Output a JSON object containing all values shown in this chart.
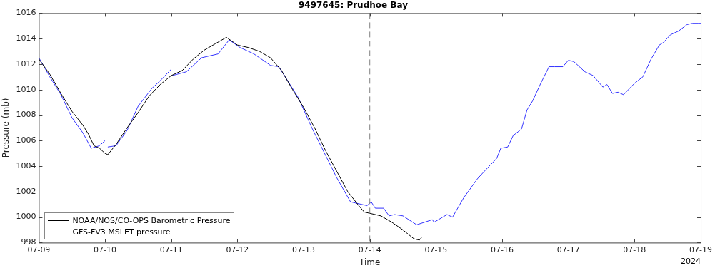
{
  "chart_data": {
    "type": "line",
    "title": "9497645: Prudhoe Bay",
    "xlabel": "Time",
    "ylabel": "Pressure (mb)",
    "annotations": [
      "2024"
    ],
    "xlim": [
      "2024-07-09",
      "2024-07-19"
    ],
    "xticks": [
      {
        "value": "2024-07-09",
        "label": "07-09"
      },
      {
        "value": "2024-07-10",
        "label": "07-10"
      },
      {
        "value": "2024-07-11",
        "label": "07-11"
      },
      {
        "value": "2024-07-12",
        "label": "07-12"
      },
      {
        "value": "2024-07-13",
        "label": "07-13"
      },
      {
        "value": "2024-07-14",
        "label": "07-14"
      },
      {
        "value": "2024-07-15",
        "label": "07-15"
      },
      {
        "value": "2024-07-16",
        "label": "07-16"
      },
      {
        "value": "2024-07-17",
        "label": "07-17"
      },
      {
        "value": "2024-07-18",
        "label": "07-18"
      },
      {
        "value": "2024-07-19",
        "label": "07-19"
      }
    ],
    "ylim": [
      998,
      1016
    ],
    "yticks": [
      998,
      1000,
      1002,
      1004,
      1006,
      1008,
      1010,
      1012,
      1014,
      1016
    ],
    "grid": false,
    "legend": "bottom left",
    "marker": "none",
    "line_style": "solid",
    "ref_lines": [
      {
        "axis": "x",
        "value": "2024-07-14",
        "color": "#808080",
        "line_style": "dashed"
      }
    ],
    "series": [
      {
        "name": "NOAA/NOS/CO-OPS Barometric Pressure",
        "color": "#000000",
        "x": [
          "2024-07-09T00:00",
          "2024-07-09T04:00",
          "2024-07-09T08:00",
          "2024-07-09T12:00",
          "2024-07-09T16:00",
          "2024-07-09T18:00",
          "2024-07-09T20:00",
          "2024-07-09T22:00",
          "2024-07-10T00:00",
          "2024-07-10T01:00",
          "2024-07-10T04:00",
          "2024-07-10T08:00",
          "2024-07-10T12:00",
          "2024-07-10T16:00",
          "2024-07-10T20:00",
          "2024-07-11T00:00",
          "2024-07-11T04:00",
          "2024-07-11T08:00",
          "2024-07-11T12:00",
          "2024-07-11T16:00",
          "2024-07-11T20:00",
          "2024-07-11T22:00",
          "2024-07-12T00:00",
          "2024-07-12T04:00",
          "2024-07-12T08:00",
          "2024-07-12T12:00",
          "2024-07-12T16:00",
          "2024-07-12T20:00",
          "2024-07-13T00:00",
          "2024-07-13T04:00",
          "2024-07-13T08:00",
          "2024-07-13T12:00",
          "2024-07-13T16:00",
          "2024-07-13T20:00",
          "2024-07-13T22:00",
          "2024-07-14T00:00",
          "2024-07-14T04:00",
          "2024-07-14T08:00",
          "2024-07-14T12:00",
          "2024-07-14T16:00",
          "2024-07-14T18:00",
          "2024-07-14T18:45"
        ],
        "values": [
          1012.4,
          1011.2,
          1009.7,
          1008.3,
          1007.2,
          1006.5,
          1005.6,
          1005.4,
          1005.0,
          1004.9,
          1005.7,
          1007.0,
          1008.2,
          1009.5,
          1010.4,
          1011.1,
          1011.5,
          1012.4,
          1013.1,
          1013.6,
          1014.1,
          1013.8,
          1013.5,
          1013.3,
          1013.0,
          1012.5,
          1011.5,
          1010.0,
          1008.6,
          1007.0,
          1005.2,
          1003.6,
          1002.0,
          1000.9,
          1000.4,
          1000.3,
          1000.1,
          999.6,
          999.0,
          998.3,
          998.2,
          998.4
        ]
      },
      {
        "name": "GFS-FV3 MSLET pressure",
        "color": "#3333ff",
        "x": [
          "2024-07-09T00:00",
          "2024-07-09T04:00",
          "2024-07-09T08:00",
          "2024-07-09T12:00",
          "2024-07-09T16:00",
          "2024-07-09T19:00",
          "2024-07-09T22:00",
          "2024-07-10T00:00",
          "2024-07-10T00:30",
          "2024-07-10T01:00",
          "2024-07-10T04:00",
          "2024-07-10T08:00",
          "2024-07-10T12:00",
          "2024-07-10T17:00",
          "2024-07-10T20:00",
          "2024-07-11T00:00",
          "2024-07-11T00:10",
          "2024-07-11T00:20",
          "2024-07-11T05:30",
          "2024-07-11T11:00",
          "2024-07-11T17:00",
          "2024-07-11T21:00",
          "2024-07-12T01:00",
          "2024-07-12T06:00",
          "2024-07-12T12:00",
          "2024-07-12T15:00",
          "2024-07-12T22:00",
          "2024-07-13T03:00",
          "2024-07-13T09:00",
          "2024-07-13T12:00",
          "2024-07-13T17:00",
          "2024-07-13T23:00",
          "2024-07-14T00:30",
          "2024-07-14T02:00",
          "2024-07-14T05:00",
          "2024-07-14T07:00",
          "2024-07-14T09:00",
          "2024-07-14T12:00",
          "2024-07-14T17:00",
          "2024-07-14T22:40",
          "2024-07-14T23:20",
          "2024-07-15T04:00",
          "2024-07-15T06:00",
          "2024-07-15T10:00",
          "2024-07-15T15:00",
          "2024-07-15T18:00",
          "2024-07-15T22:00",
          "2024-07-15T23:30",
          "2024-07-16T02:00",
          "2024-07-16T04:00",
          "2024-07-16T07:00",
          "2024-07-16T09:00",
          "2024-07-16T11:00",
          "2024-07-16T14:00",
          "2024-07-16T17:00",
          "2024-07-16T19:00",
          "2024-07-16T22:00",
          "2024-07-17T00:00",
          "2024-07-17T02:00",
          "2024-07-17T06:00",
          "2024-07-17T09:00",
          "2024-07-17T12:30",
          "2024-07-17T14:00",
          "2024-07-17T16:00",
          "2024-07-17T18:00",
          "2024-07-17T20:00",
          "2024-07-18T00:00",
          "2024-07-18T03:00",
          "2024-07-18T06:00",
          "2024-07-18T09:00",
          "2024-07-18T10:30",
          "2024-07-18T13:00",
          "2024-07-18T16:00",
          "2024-07-18T19:00",
          "2024-07-18T21:00",
          "2024-07-18T23:00",
          "2024-07-19T00:00"
        ],
        "values": [
          1012.5,
          1011.0,
          1009.6,
          1007.8,
          1006.6,
          1005.4,
          1005.6,
          1006.0,
          null,
          1005.5,
          1005.6,
          1006.8,
          1008.7,
          1010.1,
          1010.7,
          1011.6,
          null,
          1011.1,
          1011.4,
          1012.5,
          1012.8,
          1013.9,
          1013.3,
          1012.8,
          1011.9,
          1011.8,
          1009.4,
          1007.0,
          1004.4,
          1003.1,
          1001.2,
          1000.9,
          1001.2,
          1000.7,
          1000.7,
          1000.1,
          1000.2,
          1000.1,
          999.4,
          999.8,
          999.6,
          1000.2,
          1000.0,
          1001.5,
          1003.0,
          1003.7,
          1004.6,
          1005.4,
          1005.5,
          1006.4,
          1006.9,
          1008.4,
          1009.1,
          1010.5,
          1011.8,
          1011.8,
          1011.8,
          1012.3,
          1012.2,
          1011.4,
          1011.1,
          1010.2,
          1010.4,
          1009.7,
          1009.8,
          1009.6,
          1010.5,
          1011.0,
          1012.4,
          1013.5,
          1013.7,
          1014.3,
          1014.6,
          1015.1,
          1015.2,
          1015.2,
          1015.2
        ]
      }
    ]
  }
}
